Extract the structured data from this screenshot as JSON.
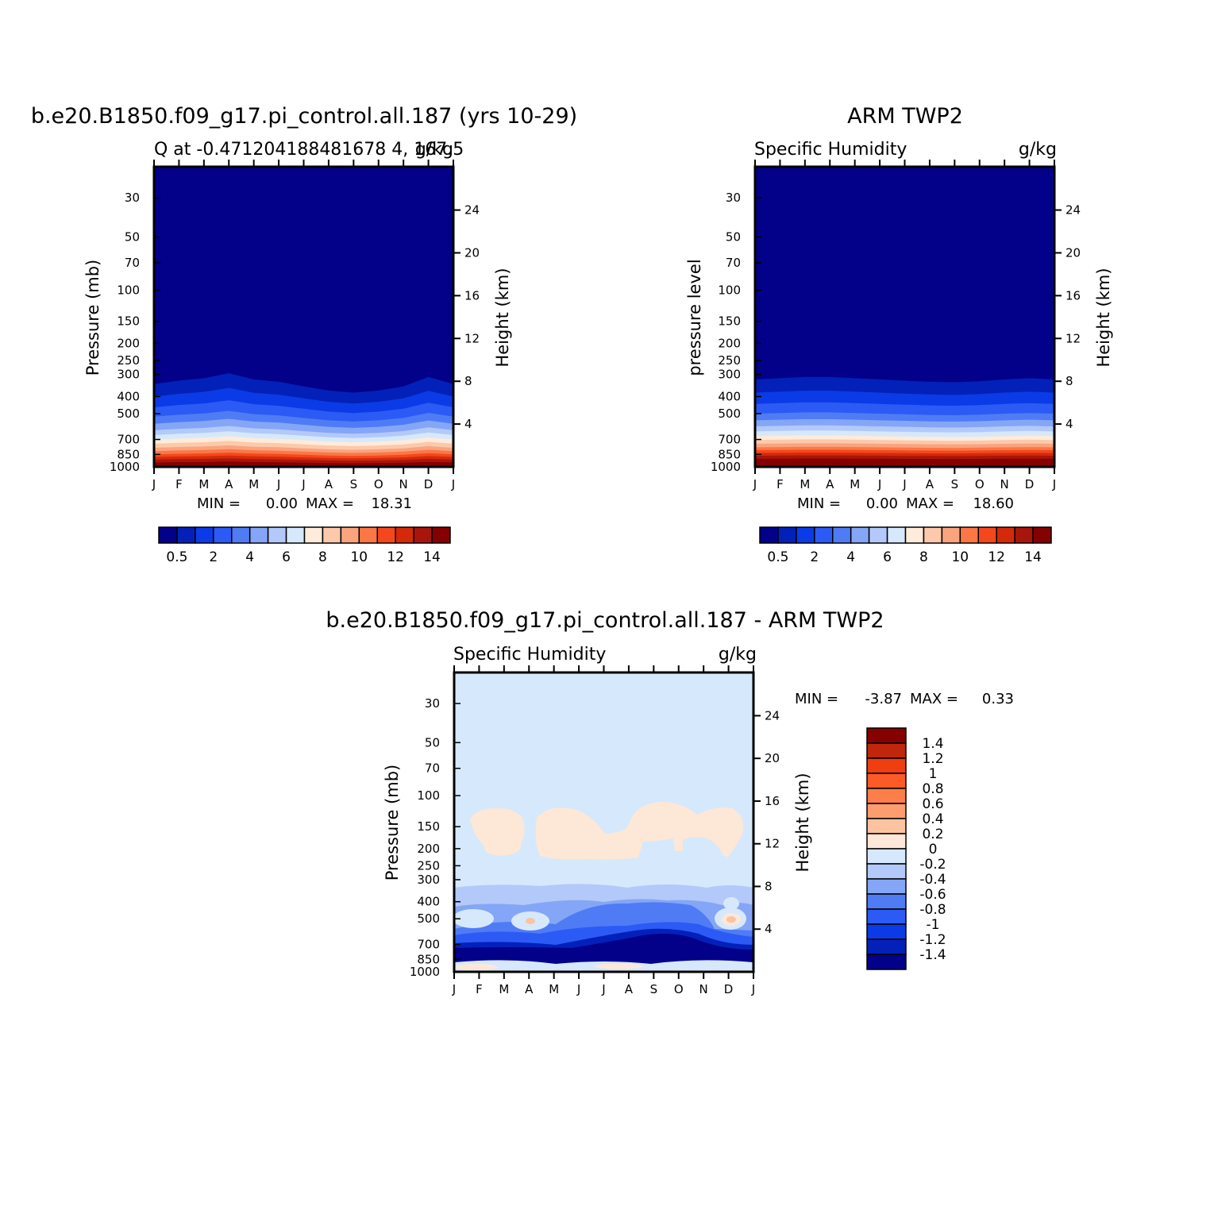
{
  "chart_data": [
    {
      "type": "heatmap",
      "title": "b.e20.B1850.f09_g17.pi_control.all.187 (yrs 10-29)",
      "subtitle_left": "Q at -0.471204188481678  4, 167.5",
      "subtitle_right": "g/kg",
      "ylabel": "Pressure (mb)",
      "ylabel_right": "Height (km)",
      "x_ticks": [
        "J",
        "F",
        "M",
        "A",
        "M",
        "J",
        "J",
        "A",
        "S",
        "O",
        "N",
        "D",
        "J"
      ],
      "y_ticks": [
        "30",
        "50",
        "70",
        "100",
        "150",
        "200",
        "250",
        "300",
        "400",
        "500",
        "700",
        "850",
        "1000"
      ],
      "y_ticks_right": [
        "24",
        "20",
        "16",
        "12",
        "8",
        "4"
      ],
      "stats": {
        "min_label": "MIN =",
        "min": "0.00",
        "max_label": "MAX =",
        "max": "18.31"
      },
      "colorbar": {
        "orientation": "horizontal",
        "labels": [
          "0.5",
          "2",
          "4",
          "6",
          "8",
          "10",
          "12",
          "14"
        ],
        "colors": [
          "#03008a",
          "#0321b8",
          "#0b3be6",
          "#2c5af5",
          "#4f7cf5",
          "#85a6f6",
          "#b3c9fa",
          "#d6e8fc",
          "#feebd9",
          "#fcc9ab",
          "#f9a47f",
          "#fb7746",
          "#f5471d",
          "#d42a0a",
          "#a8150a",
          "#850000"
        ]
      },
      "months": [
        "J",
        "F",
        "M",
        "A",
        "M",
        "J",
        "J",
        "A",
        "S",
        "O",
        "N",
        "D",
        "J"
      ],
      "contour_levels_hpa": [
        340,
        400,
        460,
        520,
        570,
        620,
        660,
        700,
        740,
        780,
        815,
        850,
        880,
        910,
        945
      ],
      "level_month_offsets_hpa": [
        0,
        -15,
        -25,
        -45,
        -20,
        -10,
        10,
        30,
        40,
        30,
        10,
        -30,
        0
      ]
    },
    {
      "type": "heatmap",
      "title": "ARM TWP2",
      "subtitle_left": "Specific Humidity",
      "subtitle_right": "g/kg",
      "ylabel": "pressure level",
      "ylabel_right": "Height (km)",
      "x_ticks": [
        "J",
        "F",
        "M",
        "A",
        "M",
        "J",
        "J",
        "A",
        "S",
        "O",
        "N",
        "D",
        "J"
      ],
      "y_ticks": [
        "30",
        "50",
        "70",
        "100",
        "150",
        "200",
        "250",
        "300",
        "400",
        "500",
        "700",
        "850",
        "1000"
      ],
      "y_ticks_right": [
        "24",
        "20",
        "16",
        "12",
        "8",
        "4"
      ],
      "stats": {
        "min_label": "MIN =",
        "min": "0.00",
        "max_label": "MAX =",
        "max": "18.60"
      },
      "colorbar": {
        "orientation": "horizontal",
        "labels": [
          "0.5",
          "2",
          "4",
          "6",
          "8",
          "10",
          "12",
          "14"
        ],
        "colors": [
          "#03008a",
          "#0321b8",
          "#0b3be6",
          "#2c5af5",
          "#4f7cf5",
          "#85a6f6",
          "#b3c9fa",
          "#d6e8fc",
          "#feebd9",
          "#fcc9ab",
          "#f9a47f",
          "#fb7746",
          "#f5471d",
          "#d42a0a",
          "#a8150a",
          "#850000"
        ]
      },
      "months": [
        "J",
        "F",
        "M",
        "A",
        "M",
        "J",
        "J",
        "A",
        "S",
        "O",
        "N",
        "D",
        "J"
      ],
      "contour_levels_hpa": [
        320,
        380,
        440,
        500,
        545,
        590,
        630,
        670,
        705,
        740,
        775,
        805,
        835,
        865,
        900
      ],
      "level_month_offsets_hpa": [
        0,
        -5,
        -10,
        -10,
        -5,
        0,
        5,
        10,
        12,
        8,
        0,
        -5,
        0
      ]
    },
    {
      "type": "heatmap",
      "title": "b.e20.B1850.f09_g17.pi_control.all.187 - ARM TWP2",
      "subtitle_left": "Specific Humidity",
      "subtitle_right": "g/kg",
      "ylabel": "Pressure (mb)",
      "ylabel_right": "Height (km)",
      "x_ticks": [
        "J",
        "F",
        "M",
        "A",
        "M",
        "J",
        "J",
        "A",
        "S",
        "O",
        "N",
        "D",
        "J"
      ],
      "y_ticks": [
        "30",
        "50",
        "70",
        "100",
        "150",
        "200",
        "250",
        "300",
        "400",
        "500",
        "700",
        "850",
        "1000"
      ],
      "y_ticks_right": [
        "24",
        "20",
        "16",
        "12",
        "8",
        "4"
      ],
      "stats": {
        "min_label": "MIN =",
        "min": "-3.87",
        "max_label": "MAX =",
        "max": "0.33"
      },
      "colorbar": {
        "orientation": "vertical",
        "labels": [
          "1.4",
          "1.2",
          "1",
          "0.8",
          "0.6",
          "0.4",
          "0.2",
          "0",
          "-0.2",
          "-0.4",
          "-0.6",
          "-0.8",
          "-1",
          "-1.2",
          "-1.4"
        ],
        "colors": [
          "#850000",
          "#c0260b",
          "#ef3e10",
          "#fc5a26",
          "#fc7e48",
          "#fb9d6e",
          "#fcc3a1",
          "#fde7d7",
          "#d6e8fc",
          "#b3c9fa",
          "#85a6f6",
          "#4f7cf5",
          "#2c5af5",
          "#0b3be6",
          "#0321b8",
          "#03008a"
        ]
      }
    }
  ]
}
